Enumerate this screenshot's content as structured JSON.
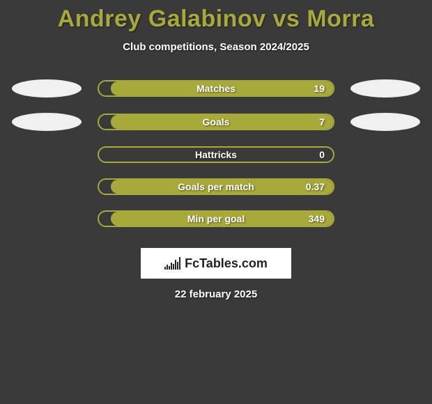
{
  "title": "Andrey Galabinov vs Morra",
  "subtitle": "Club competitions, Season 2024/2025",
  "date": "22 february 2025",
  "logo_text": "FcTables.com",
  "colors": {
    "accent": "#a7a93b",
    "ellipse": "#f0f0f0",
    "background": "#3a3a3a",
    "text": "#ffffff"
  },
  "stats": [
    {
      "label": "Matches",
      "value": "19",
      "fill_pct": 95,
      "fill_side": "right",
      "show_ellipses": true
    },
    {
      "label": "Goals",
      "value": "7",
      "fill_pct": 95,
      "fill_side": "right",
      "show_ellipses": true
    },
    {
      "label": "Hattricks",
      "value": "0",
      "fill_pct": 0,
      "fill_side": "right",
      "show_ellipses": false
    },
    {
      "label": "Goals per match",
      "value": "0.37",
      "fill_pct": 95,
      "fill_side": "right",
      "show_ellipses": false
    },
    {
      "label": "Min per goal",
      "value": "349",
      "fill_pct": 95,
      "fill_side": "right",
      "show_ellipses": false
    }
  ]
}
